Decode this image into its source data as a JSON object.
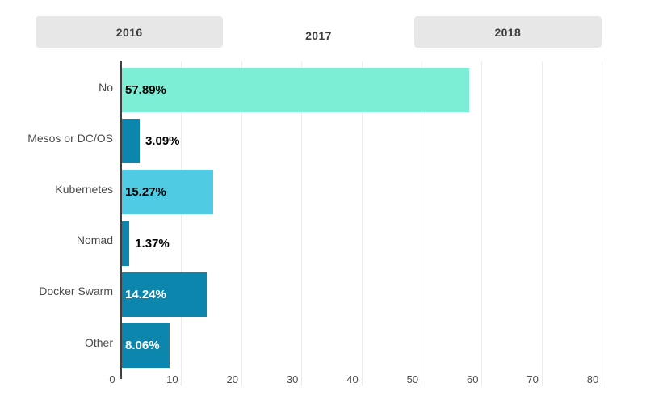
{
  "tabs": {
    "items": [
      {
        "label": "2016",
        "active": false
      },
      {
        "label": "2017",
        "active": true
      },
      {
        "label": "2018",
        "active": false
      }
    ]
  },
  "chart_data": {
    "type": "bar",
    "orientation": "horizontal",
    "title": "",
    "categories": [
      "No",
      "Mesos or DC/OS",
      "Kubernetes",
      "Nomad",
      "Docker Swarm",
      "Other"
    ],
    "series": [
      {
        "name": "2017",
        "values": [
          57.89,
          3.09,
          15.27,
          1.37,
          14.24,
          8.06
        ]
      }
    ],
    "value_labels": [
      "57.89%",
      "3.09%",
      "15.27%",
      "1.37%",
      "14.24%",
      "8.06%"
    ],
    "bar_colors": [
      "#7ceed5",
      "#0d86ae",
      "#4fcbe4",
      "#0d86ae",
      "#0d86ae",
      "#0d86ae"
    ],
    "value_label_placement": [
      "inside",
      "outside",
      "inside",
      "outside",
      "inside",
      "inside"
    ],
    "value_label_colors": [
      "#000000",
      "#000000",
      "#000000",
      "#000000",
      "#ffffff",
      "#ffffff"
    ],
    "xlim": [
      0,
      80
    ],
    "x_ticks": [
      "0",
      "10",
      "20",
      "30",
      "40",
      "50",
      "60",
      "70",
      "80"
    ],
    "grid": true,
    "legend": "none",
    "colors": {
      "grid": "#ececec",
      "axis": "#3f3f3f",
      "tab_background": "#e7e7e7",
      "tab_active_background": "#ffffff",
      "category_text": "#4a4a4a",
      "tick_text": "#4d4d4d"
    }
  }
}
